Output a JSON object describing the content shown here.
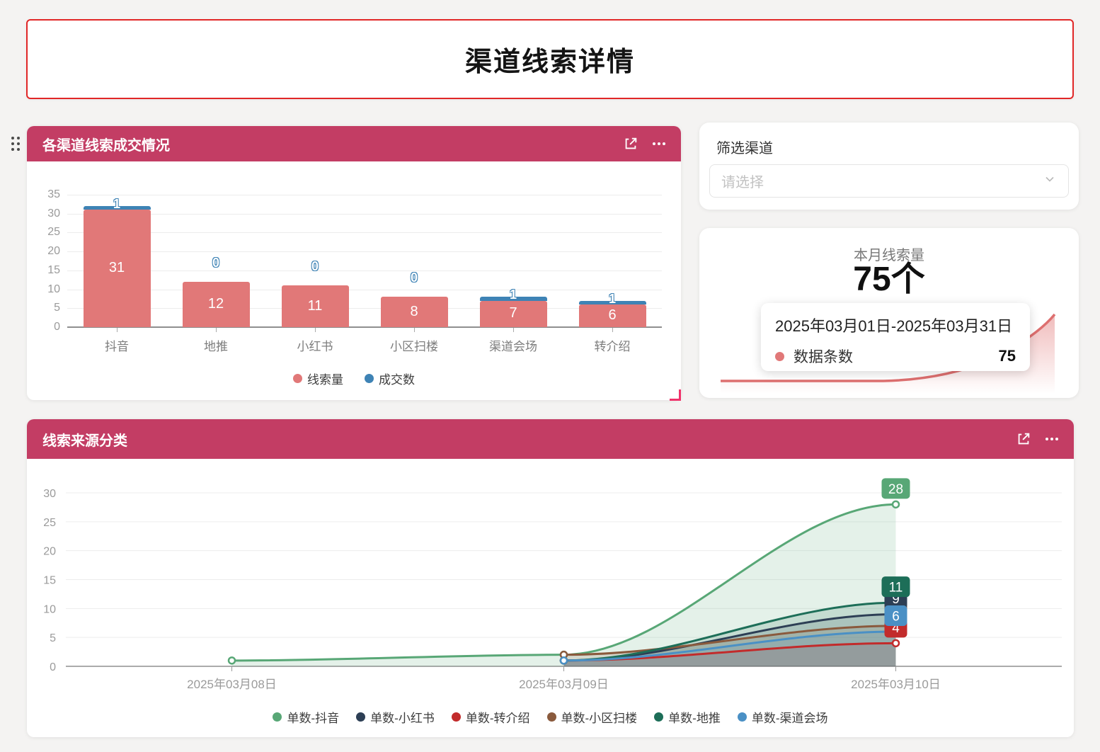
{
  "page_title": "渠道线索详情",
  "theme": {
    "page_bg": "#f4f3f2",
    "card_header_bg": "#c33d64",
    "title_border": "#e12727",
    "accent_pink": "#f0336b"
  },
  "icons": {
    "drag": "drag-handle",
    "expand": "open-in-new",
    "more": "more-horizontal",
    "chevron": "chevron-down",
    "resize": "resize-corner"
  },
  "cards": {
    "bar": {
      "title": "各渠道线索成交情况"
    },
    "filter": {
      "label": "筛选渠道",
      "placeholder": "请选择"
    },
    "stat": {
      "title": "本月线索量",
      "value": "75个",
      "tooltip_range": "2025年03月01日-2025年03月31日",
      "tooltip_series": "数据条数",
      "tooltip_value": "75"
    },
    "line": {
      "title": "线索来源分类"
    }
  },
  "chart_data": [
    {
      "type": "bar",
      "title": "各渠道线索成交情况",
      "stacked": true,
      "categories": [
        "抖音",
        "地推",
        "小红书",
        "小区扫楼",
        "渠道会场",
        "转介绍"
      ],
      "series": [
        {
          "name": "线索量",
          "color": "#e17878",
          "values": [
            31,
            12,
            11,
            8,
            7,
            6
          ]
        },
        {
          "name": "成交数",
          "color": "#3e83b5",
          "values": [
            1,
            0,
            0,
            0,
            1,
            1
          ]
        }
      ],
      "ylim": [
        0,
        35
      ],
      "ytick_step": 5,
      "grid": true,
      "legend_position": "bottom"
    },
    {
      "type": "line",
      "title": "线索来源分类",
      "smooth": true,
      "area": true,
      "x": [
        "2025年03月08日",
        "2025年03月09日",
        "2025年03月10日"
      ],
      "series": [
        {
          "name": "单数-抖音",
          "color": "#58a776",
          "values": [
            1,
            2,
            28
          ]
        },
        {
          "name": "单数-小红书",
          "color": "#2d3f55",
          "values": [
            null,
            1,
            9
          ]
        },
        {
          "name": "单数-转介绍",
          "color": "#c22b2b",
          "values": [
            null,
            1,
            4
          ]
        },
        {
          "name": "单数-小区扫楼",
          "color": "#8a5a3d",
          "values": [
            null,
            2,
            7
          ]
        },
        {
          "name": "单数-地推",
          "color": "#1d6e58",
          "values": [
            null,
            1,
            11
          ]
        },
        {
          "name": "单数-渠道会场",
          "color": "#4a90c5",
          "values": [
            null,
            1,
            6
          ]
        }
      ],
      "ylim": [
        0,
        30
      ],
      "ytick_step": 5,
      "grid": true,
      "legend_position": "bottom"
    },
    {
      "type": "area",
      "title": "本月线索量",
      "name": "数据条数",
      "value_label": "75个",
      "visible_value": 75,
      "color": "#dd6f6f",
      "axes_visible": false
    }
  ]
}
